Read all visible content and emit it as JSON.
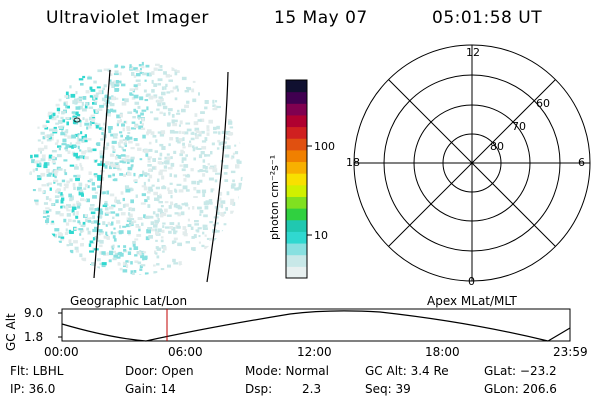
{
  "header": {
    "instrument": "Ultraviolet Imager",
    "date": "15 May 07",
    "time": "05:01:58 UT"
  },
  "colorbar": {
    "unit_label": "photon cm⁻²s⁻¹",
    "ticks": [
      "100",
      "10"
    ],
    "colors": [
      "#e8f0f0",
      "#c8e8e8",
      "#88e0e0",
      "#30d8d0",
      "#20c8b0",
      "#30d040",
      "#80e020",
      "#d0f000",
      "#f8e000",
      "#f8b000",
      "#f08000",
      "#e05010",
      "#d02020",
      "#b00030",
      "#800050",
      "#400050",
      "#101030"
    ]
  },
  "polar_plot": {
    "hour_labels": [
      "12",
      "18",
      "6",
      "0"
    ],
    "lat_labels": [
      "60",
      "70",
      "80"
    ]
  },
  "timeline": {
    "left_label": "Geographic Lat/Lon",
    "right_label": "Apex MLat/MLT",
    "axis_title": "GC Alt",
    "y_ticks": [
      "9.0",
      "1.8"
    ],
    "x_ticks": [
      "00:00",
      "06:00",
      "12:00",
      "18:00",
      "23:59"
    ],
    "cursor_color": "#c00000"
  },
  "status": {
    "flt": "Flt: LBHL",
    "ip": "IP: 36.0",
    "door": "Door: Open",
    "gain": "Gain: 14",
    "mode": "Mode: Normal",
    "dsp_label": "Dsp:",
    "dsp_value": "2.3",
    "gcalt": "GC Alt: 3.4 Re",
    "seq": "Seq: 39",
    "glat": "GLat: −23.2",
    "glon": "GLon: 206.6"
  }
}
